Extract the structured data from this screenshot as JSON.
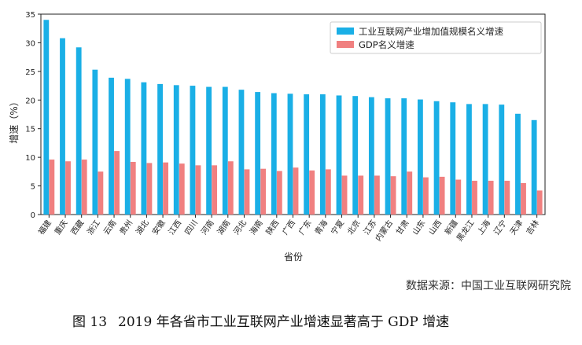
{
  "chart_data": {
    "type": "bar",
    "ylabel": "增速（%）",
    "xlabel": "省份",
    "ylim": [
      0,
      35
    ],
    "yticks": [
      0,
      5,
      10,
      15,
      20,
      25,
      30,
      35
    ],
    "grid": false,
    "legend_position": "top-right",
    "categories": [
      "福建",
      "重庆",
      "西藏",
      "浙江",
      "云南",
      "贵州",
      "湖北",
      "安徽",
      "江西",
      "四川",
      "河南",
      "湖南",
      "河北",
      "海南",
      "陕西",
      "广西",
      "广东",
      "青海",
      "宁夏",
      "北京",
      "江苏",
      "内蒙古",
      "甘肃",
      "山东",
      "山西",
      "新疆",
      "黑龙江",
      "上海",
      "辽宁",
      "天津",
      "吉林"
    ],
    "series": [
      {
        "name": "工业互联网产业增加值规模名义增速",
        "color": "#1AAFE6",
        "values": [
          34.0,
          30.8,
          29.2,
          25.3,
          23.9,
          23.7,
          23.1,
          22.8,
          22.6,
          22.5,
          22.3,
          22.3,
          21.8,
          21.4,
          21.2,
          21.1,
          21.0,
          21.0,
          20.8,
          20.7,
          20.5,
          20.3,
          20.3,
          20.1,
          19.8,
          19.6,
          19.3,
          19.3,
          19.2,
          17.6,
          16.5
        ]
      },
      {
        "name": "GDP名义增速",
        "color": "#F08080",
        "values": [
          9.6,
          9.3,
          9.6,
          7.5,
          11.1,
          9.2,
          9.0,
          9.1,
          8.9,
          8.6,
          8.6,
          9.3,
          7.9,
          8.0,
          7.6,
          8.2,
          7.7,
          7.9,
          6.8,
          6.8,
          6.8,
          6.7,
          7.5,
          6.5,
          6.6,
          6.1,
          5.9,
          5.9,
          5.9,
          5.5,
          4.2
        ]
      }
    ]
  },
  "source_text": "数据来源：中国工业互联网研究院",
  "caption": {
    "number": "图 13",
    "text": "2019 年各省市工业互联网产业增速显著高于 GDP 增速"
  }
}
